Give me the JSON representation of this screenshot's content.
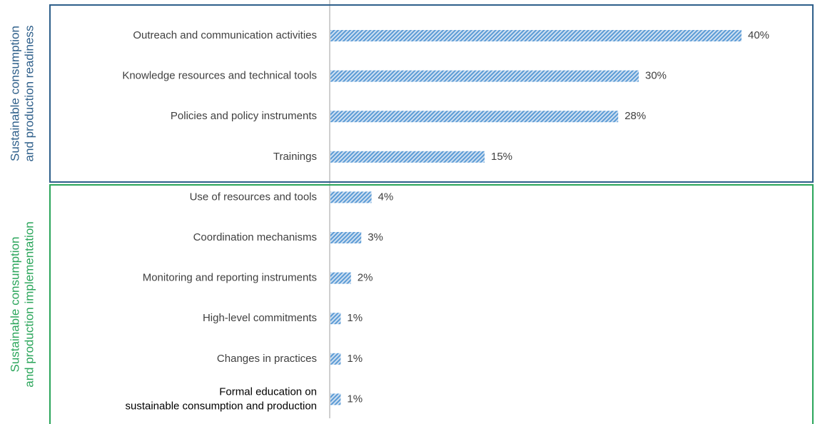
{
  "chart_data": {
    "type": "bar",
    "orientation": "horizontal",
    "categories": [
      "Outreach and communication activities",
      "Knowledge resources and technical tools",
      "Policies and policy instruments",
      "Trainings",
      "Use of resources and tools",
      "Coordination mechanisms",
      "Monitoring and reporting instruments",
      "High-level commitments",
      "Changes in practices",
      "Formal education on\nsustainable consumption and production"
    ],
    "values": [
      40,
      30,
      28,
      15,
      4,
      3,
      2,
      1,
      1,
      1
    ],
    "value_labels": [
      "40%",
      "30%",
      "28%",
      "15%",
      "4%",
      "3%",
      "2%",
      "1%",
      "1%",
      "1%"
    ],
    "color": "#5b9bd5",
    "groups": [
      {
        "label": [
          "Sustainable consumption",
          "and production readiness"
        ],
        "color": "#2e5f8a"
      },
      {
        "label": [
          "Sustainable consumption",
          "and production implementation"
        ],
        "color": "#2aa55a"
      }
    ]
  }
}
